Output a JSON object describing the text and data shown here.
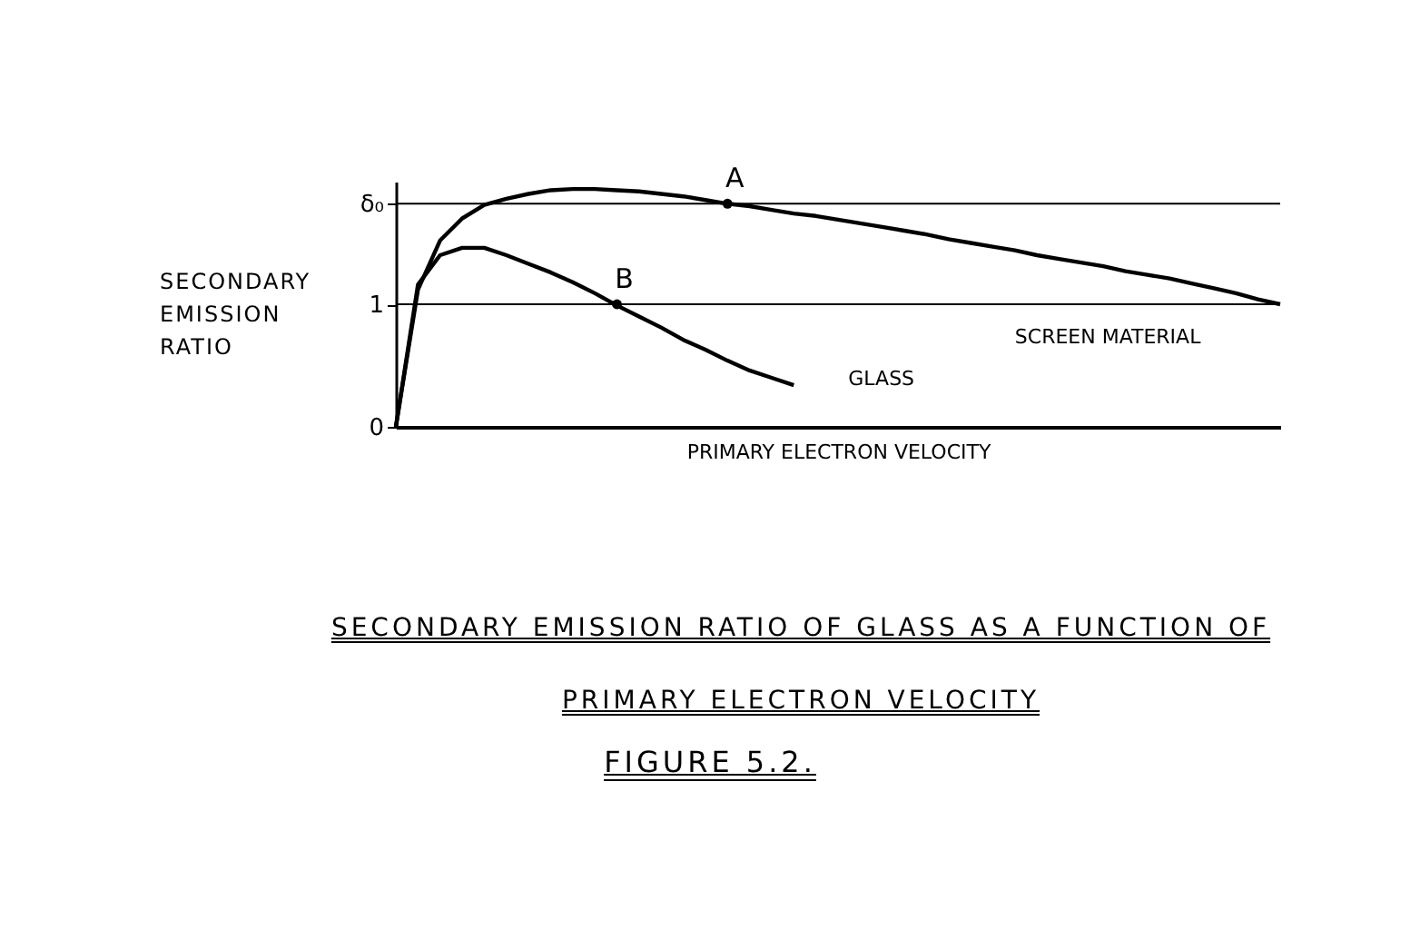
{
  "chart_data": {
    "type": "line",
    "title": "SECONDARY EMISSION RATIO OF GLASS AS A FUNCTION OF PRIMARY ELECTRON VELOCITY",
    "subtitle": "FIGURE 5.2.",
    "xlabel": "PRIMARY ELECTRON VELOCITY",
    "ylabel": "SECONDARY EMISSION RATIO",
    "categories": [
      null,
      null,
      null,
      null,
      null,
      null,
      null,
      null,
      null,
      null,
      null,
      null,
      null,
      null,
      null,
      null,
      null,
      null,
      null,
      null,
      null,
      null,
      null,
      null,
      null,
      null,
      null,
      null,
      null,
      null,
      null,
      null,
      null,
      null,
      null,
      null,
      null,
      null,
      null,
      null,
      null
    ],
    "series": [
      {
        "name": "SCREEN MATERIAL",
        "color": "#000000",
        "values": [
          0,
          1.12,
          1.52,
          1.7,
          1.81,
          1.86,
          1.9,
          1.93,
          1.94,
          1.94,
          1.93,
          1.92,
          1.9,
          1.88,
          1.85,
          1.82,
          1.8,
          1.77,
          1.74,
          1.72,
          1.69,
          1.66,
          1.63,
          1.6,
          1.57,
          1.53,
          1.5,
          1.47,
          1.44,
          1.4,
          1.37,
          1.34,
          1.31,
          1.27,
          1.24,
          1.21,
          1.17,
          1.13,
          1.09,
          1.04,
          1.0
        ]
      },
      {
        "name": "GLASS",
        "color": "#000000",
        "values": [
          0,
          1.16,
          1.4,
          1.46,
          1.46,
          1.4,
          1.33,
          1.26,
          1.18,
          1.09,
          0.99,
          0.9,
          0.81,
          0.71,
          0.63,
          0.54,
          0.46,
          0.4,
          0.34,
          null,
          null,
          null,
          null,
          null,
          null,
          null,
          null,
          null,
          null,
          null,
          null,
          null,
          null,
          null,
          null,
          null,
          null,
          null,
          null,
          null,
          null
        ]
      }
    ],
    "ylim": [
      0,
      2.0
    ],
    "yticks": [
      {
        "value": 0,
        "label": "0"
      },
      1,
      {
        "value": 1.82,
        "label": "δ₀"
      }
    ],
    "ref_lines": [
      {
        "axis": "y",
        "value": 1.82
      },
      {
        "axis": "y",
        "value": 1
      }
    ],
    "annotations": [
      {
        "text": "A",
        "y": 1.82
      },
      {
        "text": "B",
        "y": 1
      }
    ],
    "tick_labels": "y",
    "grid": false,
    "legend": false,
    "marker": "none",
    "line_style": "solid"
  }
}
